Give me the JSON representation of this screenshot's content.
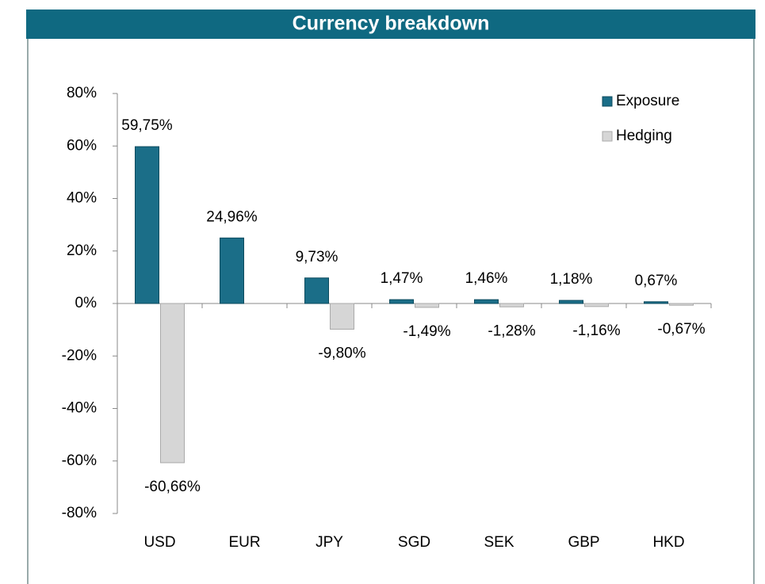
{
  "chart_data": {
    "type": "bar",
    "title": "Currency breakdown",
    "categories": [
      "USD",
      "EUR",
      "JPY",
      "SGD",
      "SEK",
      "GBP",
      "HKD"
    ],
    "series": [
      {
        "name": "Exposure",
        "color": "#1b6e88",
        "values": [
          59.75,
          24.96,
          9.73,
          1.47,
          1.46,
          1.18,
          0.67
        ],
        "value_labels": [
          "59,75%",
          "24,96%",
          "9,73%",
          "1,47%",
          "1,46%",
          "1,18%",
          "0,67%"
        ]
      },
      {
        "name": "Hedging",
        "color": "#d6d6d6",
        "values": [
          -60.66,
          0,
          -9.8,
          -1.49,
          -1.28,
          -1.16,
          -0.67
        ],
        "value_labels": [
          "-60,66%",
          null,
          "-9,80%",
          "-1,49%",
          "-1,28%",
          "-1,16%",
          "-0,67%"
        ]
      }
    ],
    "ylim": [
      -80,
      80
    ],
    "yticks": [
      {
        "value": -80,
        "label": "-80%"
      },
      {
        "value": -60,
        "label": "-60%"
      },
      {
        "value": -40,
        "label": "-40%"
      },
      {
        "value": -20,
        "label": "-20%"
      },
      {
        "value": 0,
        "label": "0%"
      },
      {
        "value": 20,
        "label": "20%"
      },
      {
        "value": 40,
        "label": "40%"
      },
      {
        "value": 60,
        "label": "60%"
      },
      {
        "value": 80,
        "label": "80%"
      }
    ],
    "legend": "top-right",
    "grid": false
  }
}
